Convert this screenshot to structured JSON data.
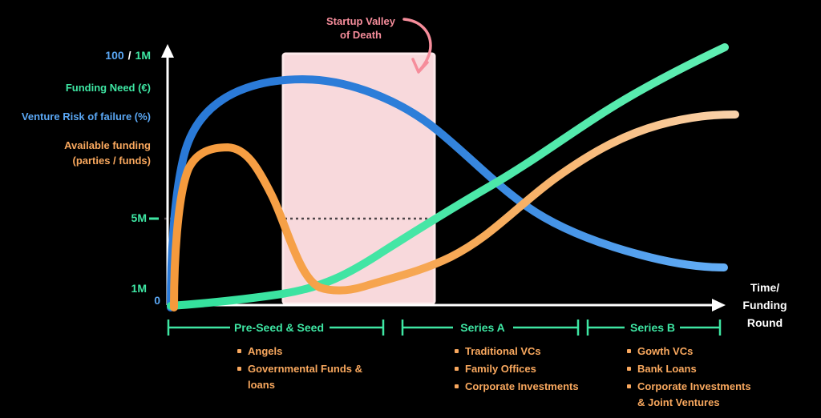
{
  "colors": {
    "background": "#000000",
    "risk_curve_blue": "#2d7dd9",
    "risk_curve_blue_end": "#64aef6",
    "funding_need_green": "#3ee6a3",
    "available_funding_orange": "#f5a04a",
    "available_funding_orange_end": "#f8d0a8",
    "valley_pink_fill": "#f8d9dc",
    "valley_pink_border": "#fce9ea",
    "valley_label_pink": "#f68d9b",
    "axis_white": "#ffffff",
    "dotted_line": "#4e4549"
  },
  "y_axis": {
    "max_blue": "100",
    "max_sep": "/",
    "max_green": "1M",
    "funding_need": "Funding Need (€)",
    "venture_risk": "Venture Risk of failure (%)",
    "available_funding_1": "Available funding",
    "available_funding_2": "(parties / funds)",
    "tick_5m": "5M",
    "tick_1m": "1M",
    "tick_0": "0"
  },
  "x_axis": {
    "label_line1": "Time/",
    "label_line2": "Funding",
    "label_line3": "Round"
  },
  "valley_annotation": {
    "line1": "Startup Valley",
    "line2": "of Death"
  },
  "stages": [
    {
      "label": "Pre-Seed & Seed",
      "items": [
        "Angels",
        "Governmental Funds & loans"
      ]
    },
    {
      "label": "Series A",
      "items": [
        "Traditional VCs",
        "Family Offices",
        "Corporate Investments"
      ]
    },
    {
      "label": "Series B",
      "items": [
        "Gowth VCs",
        "Bank Loans",
        "Corporate Investments & Joint Ventures"
      ]
    }
  ],
  "chart_data": {
    "type": "line",
    "title": "Startup Valley of Death",
    "xlabel": "Time/Funding Round",
    "ylabel": "0 – 100 / 1M (risk % / funding €)",
    "y_ticks": [
      {
        "label": "0",
        "pct_of_axis": 0
      },
      {
        "label": "1M",
        "pct_of_axis": 6
      },
      {
        "label": "5M",
        "pct_of_axis": 34
      },
      {
        "label": "100 / 1M",
        "pct_of_axis": 100
      }
    ],
    "x_stages": [
      {
        "label": "Pre-Seed & Seed",
        "x_range": [
          0,
          3.9
        ]
      },
      {
        "label": "Series A",
        "x_range": [
          4.2,
          7.4
        ]
      },
      {
        "label": "Series B",
        "x_range": [
          7.6,
          10
        ]
      }
    ],
    "series": [
      {
        "name": "Venture Risk of failure (%)",
        "color": "#2d7dd9",
        "x": [
          0,
          0.2,
          0.5,
          1.3,
          2.5,
          3.4,
          4.8,
          5.9,
          7.1,
          8.5,
          10
        ],
        "y_pct": [
          0,
          54,
          76,
          85,
          88,
          86,
          69,
          47,
          31,
          20,
          15
        ]
      },
      {
        "name": "Funding Need (€)",
        "color": "#3ee6a3",
        "x": [
          0,
          1.3,
          2.0,
          3.8,
          5.1,
          6.5,
          7.8,
          10
        ],
        "y_pct": [
          0,
          2,
          4,
          21,
          37,
          56,
          75,
          100
        ]
      },
      {
        "name": "Available funding (parties / funds)",
        "color": "#f5a04a",
        "x": [
          0,
          0.25,
          0.7,
          1.0,
          1.8,
          2.7,
          3.1,
          4.2,
          5.1,
          6.3,
          7.8,
          8.8,
          10
        ],
        "y_pct": [
          0,
          47,
          61,
          62,
          43,
          7,
          6,
          11,
          19,
          40,
          62,
          71,
          75
        ]
      }
    ],
    "annotations": [
      {
        "type": "region",
        "label": "Startup Valley of Death",
        "x_range": [
          2.05,
          4.8
        ]
      },
      {
        "type": "dotted_line",
        "at_y_tick": "5M",
        "spans": "valley region"
      }
    ],
    "legend_position": "left-of-axis",
    "grid": false
  }
}
